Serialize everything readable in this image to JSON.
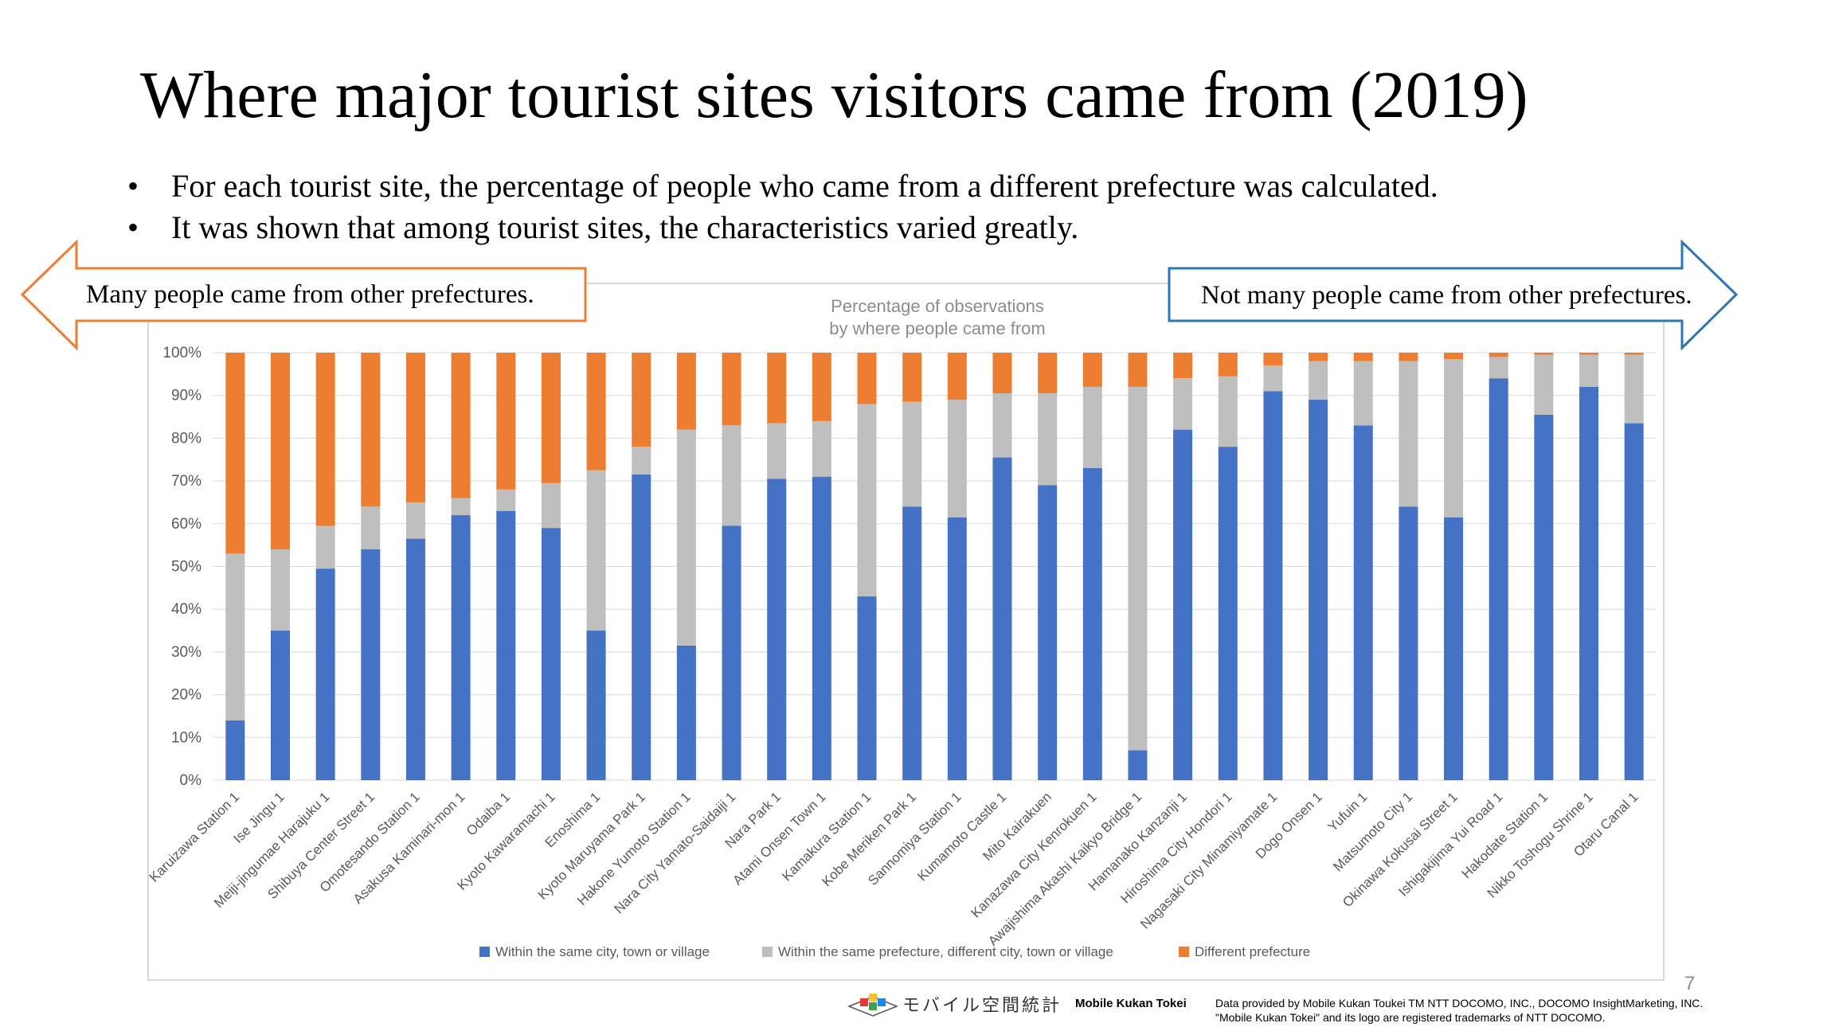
{
  "slide": {
    "title": "Where major tourist sites visitors came from (2019)",
    "bullet_symbol": "•",
    "bullets": [
      "For each tourist site, the percentage of people who came from a different prefecture was calculated.",
      "It was shown that among tourist sites, the characteristics varied greatly."
    ],
    "callout_left": "Many people came from other prefectures.",
    "callout_right": "Not many people came from other prefectures.",
    "page_number": "7",
    "footer": {
      "logo_text": "モバイル空間統計",
      "brand": "Mobile Kukan Tokei",
      "credits": [
        "Data provided by Mobile Kukan Toukei TM NTT DOCOMO, INC., DOCOMO InsightMarketing, INC.",
        "\"Mobile Kukan Tokei\" and its logo are registered trademarks of NTT DOCOMO."
      ]
    }
  },
  "colors": {
    "same_city": "#4472c4",
    "same_prefecture": "#bfbfbf",
    "different_prefecture": "#ed7d31",
    "callout_left_border": "#ed7d31",
    "callout_right_border": "#2e75b6",
    "grid": "#d9d9d9",
    "axis_text": "#595959",
    "title_text": "#8c8c8c"
  },
  "chart_data": {
    "type": "bar",
    "stacked": true,
    "title_lines": [
      "Percentage of observations",
      "by where people came from"
    ],
    "ylim": [
      0,
      100
    ],
    "y_ticks": [
      "0%",
      "10%",
      "20%",
      "30%",
      "40%",
      "50%",
      "60%",
      "70%",
      "80%",
      "90%",
      "100%"
    ],
    "grid": true,
    "legend_position": "bottom",
    "categories": [
      "Karuizawa Station 1",
      "Ise Jingu 1",
      "Meiji-jingumae Harajuku 1",
      "Shibuya Center Street 1",
      "Omotesando Station 1",
      "Asakusa Kaminari-mon 1",
      "Odaiba 1",
      "Kyoto Kawaramachi 1",
      "Enoshima 1",
      "Kyoto Maruyama Park 1",
      "Hakone Yumoto Station 1",
      "Nara City Yamato-Saidaiji 1",
      "Nara Park 1",
      "Atami Onsen Town 1",
      "Kamakura Station 1",
      "Kobe Meriken Park 1",
      "Sannomiya Station 1",
      "Kumamoto Castle 1",
      "Mito Kairakuen",
      "Kanazawa City Kenrokuen 1",
      "Awajishima Akashi Kaikyo Bridge 1",
      "Hamanako Kanzanji 1",
      "Hiroshima City Hondori 1",
      "Nagasaki City Minamiyamate 1",
      "Dogo Onsen 1",
      "Yufuin 1",
      "Matsumoto City 1",
      "Okinawa Kokusai Street 1",
      "Ishigakijima Yui Road 1",
      "Hakodate Station 1",
      "Nikko Toshogu Shrine 1",
      "Otaru Canal 1"
    ],
    "series": [
      {
        "name": "Within the same city, town or village",
        "values": [
          14,
          35,
          49.5,
          54,
          56.5,
          62,
          63,
          59,
          35,
          71.5,
          31.5,
          59.5,
          70.5,
          71,
          43,
          64,
          61.5,
          75.5,
          69,
          73,
          7,
          82,
          78,
          91,
          89,
          83,
          64,
          61.5,
          94,
          85.5,
          92,
          83.5
        ]
      },
      {
        "name": "Within the same prefecture, different city, town or village",
        "values": [
          39,
          19,
          10,
          10,
          8.5,
          4,
          5,
          10.5,
          37.5,
          6.5,
          50.5,
          23.5,
          13,
          13,
          45,
          24.5,
          27.5,
          15,
          21.5,
          19,
          85,
          12,
          16.5,
          6,
          9,
          15,
          34,
          37,
          5,
          14,
          7.5,
          16
        ]
      },
      {
        "name": "Different prefecture",
        "values": [
          47,
          46,
          40.5,
          36,
          35,
          34,
          32,
          30.5,
          27.5,
          22,
          18,
          17,
          16.5,
          16,
          12,
          11.5,
          11,
          9.5,
          9.5,
          8,
          8,
          6,
          5.5,
          3,
          2,
          2,
          2,
          1.5,
          1,
          0.5,
          0.5,
          0.5
        ]
      }
    ]
  }
}
